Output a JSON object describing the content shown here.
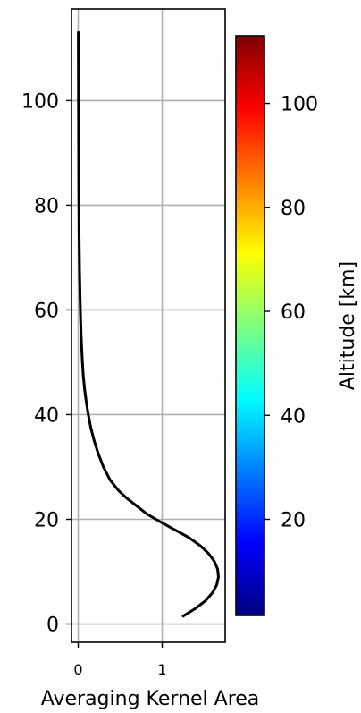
{
  "chart_data": {
    "type": "line",
    "title": "",
    "xlabel": "Averaging Kernel Area",
    "ylabel": "",
    "xlim": [
      -0.08,
      1.75
    ],
    "ylim": [
      -3.5,
      117.5
    ],
    "xticks": [
      0,
      1
    ],
    "xtick_labels": [
      "0",
      "1"
    ],
    "yticks": [
      0,
      20,
      40,
      60,
      80,
      100
    ],
    "ytick_labels": [
      "0",
      "20",
      "40",
      "60",
      "80",
      "100"
    ],
    "grid": true,
    "series": [
      {
        "color": "#000000",
        "x": [
          1.25,
          1.4,
          1.52,
          1.6,
          1.65,
          1.67,
          1.66,
          1.62,
          1.55,
          1.45,
          1.32,
          1.15,
          0.98,
          0.82,
          0.7,
          0.58,
          0.48,
          0.38,
          0.3,
          0.24,
          0.19,
          0.15,
          0.12,
          0.095,
          0.075,
          0.06,
          0.05,
          0.042,
          0.035,
          0.03,
          0.026,
          0.022,
          0.019,
          0.016,
          0.014,
          0.012,
          0.01,
          0.009,
          0.008,
          0.007,
          0.006,
          0.005,
          0.004,
          0.003,
          0.002,
          0.001
        ],
        "y": [
          1.5,
          3,
          4.5,
          6,
          7.5,
          9,
          10.5,
          12,
          13.5,
          15,
          16.5,
          18,
          19.5,
          21,
          22.5,
          24,
          25.5,
          27.5,
          30,
          32.5,
          35,
          37.5,
          40,
          42.5,
          45,
          47.5,
          50,
          52.5,
          55,
          57.5,
          60,
          62.5,
          65,
          67.5,
          70,
          72.5,
          75,
          77.5,
          80,
          82.5,
          85,
          90,
          95,
          100,
          106,
          113
        ]
      }
    ],
    "colorbar": {
      "label": "Altitude [km]",
      "colormap": "jet",
      "range": [
        1.5,
        113
      ],
      "ticks": [
        20,
        40,
        60,
        80,
        100
      ],
      "tick_labels": [
        "20",
        "40",
        "60",
        "80",
        "100"
      ],
      "colors": [
        "#00007f",
        "#0000ff",
        "#007fff",
        "#00ffff",
        "#7fff7f",
        "#ffff00",
        "#ff7f00",
        "#ff0000",
        "#7f0000"
      ]
    }
  }
}
